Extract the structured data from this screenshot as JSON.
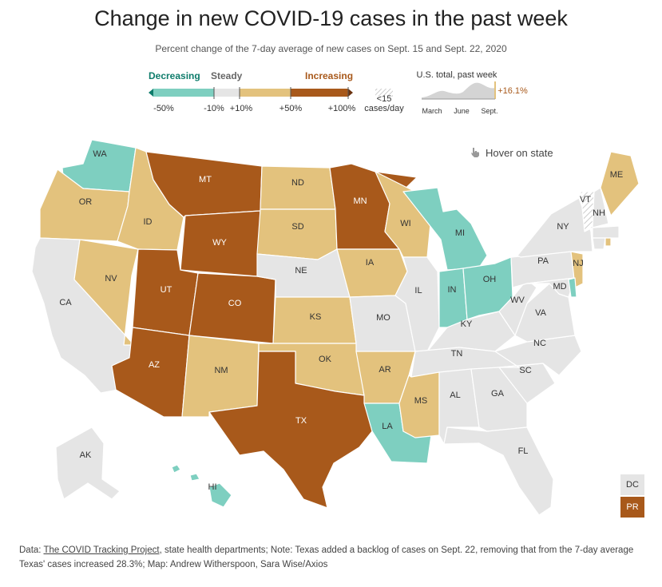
{
  "title": "Change in new COVID-19 cases in the past week",
  "subtitle": "Percent change of the 7-day average of new cases on Sept. 15 and Sept. 22, 2020",
  "legend": {
    "decreasing": "Decreasing",
    "steady": "Steady",
    "increasing": "Increasing",
    "ticks": [
      "-50%",
      "-10%",
      "+10%",
      "+50%",
      "+100%"
    ],
    "lt15": "<15",
    "cases_day": "cases/day",
    "us_total_label": "U.S. total, past week",
    "us_total_value": "+16.1%",
    "spark_ticks": [
      "March",
      "June",
      "Sept."
    ],
    "colors": {
      "dark_teal": "#0e7c6b",
      "teal": "#7ecfc0",
      "steady": "#e5e5e5",
      "tan": "#e3c27d",
      "brown": "#a8591b",
      "dark_brown": "#6b3310"
    }
  },
  "hover": "Hover on state",
  "state_labels": {
    "WA": "WA",
    "OR": "OR",
    "CA": "CA",
    "ID": "ID",
    "NV": "NV",
    "MT": "MT",
    "WY": "WY",
    "UT": "UT",
    "AZ": "AZ",
    "CO": "CO",
    "NM": "NM",
    "ND": "ND",
    "SD": "SD",
    "NE": "NE",
    "KS": "KS",
    "OK": "OK",
    "TX": "TX",
    "MN": "MN",
    "IA": "IA",
    "MO": "MO",
    "AR": "AR",
    "LA": "LA",
    "WI": "WI",
    "IL": "IL",
    "MI": "MI",
    "IN": "IN",
    "OH": "OH",
    "KY": "KY",
    "TN": "TN",
    "MS": "MS",
    "AL": "AL",
    "GA": "GA",
    "FL": "FL",
    "SC": "SC",
    "NC": "NC",
    "VA": "VA",
    "WV": "WV",
    "PA": "PA",
    "NY": "NY",
    "MD": "MD",
    "NJ": "NJ",
    "VT": "VT",
    "NH": "NH",
    "ME": "ME",
    "AK": "AK",
    "HI": "HI",
    "DC": "DC",
    "PR": "PR"
  },
  "state_category": {
    "WA": "decreasing",
    "OR": "increasing",
    "CA": "steady",
    "ID": "increasing",
    "NV": "increasing",
    "MT": "increasing_50",
    "WY": "increasing_50",
    "UT": "increasing_50",
    "AZ": "increasing_50",
    "CO": "increasing_50",
    "NM": "increasing",
    "ND": "increasing",
    "SD": "increasing",
    "NE": "steady",
    "KS": "increasing",
    "OK": "increasing",
    "TX": "increasing_50",
    "MN": "increasing_50",
    "IA": "increasing",
    "MO": "steady",
    "AR": "increasing",
    "LA": "decreasing",
    "WI": "increasing",
    "IL": "steady",
    "MI": "decreasing",
    "IN": "decreasing",
    "OH": "decreasing",
    "KY": "steady",
    "TN": "steady",
    "MS": "increasing",
    "AL": "steady",
    "GA": "steady",
    "FL": "steady",
    "SC": "steady",
    "NC": "steady",
    "VA": "steady",
    "WV": "steady",
    "PA": "steady",
    "NY": "steady",
    "MD": "steady",
    "NJ": "increasing",
    "VT": "lt15",
    "NH": "steady",
    "ME": "increasing",
    "AK": "steady",
    "HI": "decreasing",
    "DC": "steady",
    "PR": "increasing_50",
    "DE": "decreasing",
    "CT": "steady",
    "RI": "increasing",
    "MA": "steady"
  },
  "footer": {
    "data_prefix": "Data: ",
    "source_link": "The COVID Tracking Project",
    "rest": ", state health departments; Note: Texas added a backlog of cases on Sept. 22, removing that from the 7-day average Texas' cases increased 28.3%; Map: Andrew Witherspoon, Sara Wise/Axios"
  }
}
